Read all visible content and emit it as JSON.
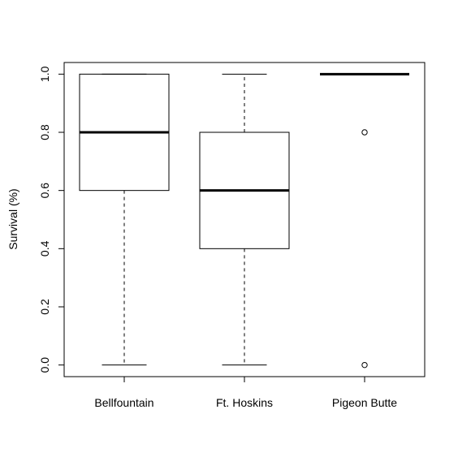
{
  "chart_data": {
    "type": "boxplot",
    "title": "",
    "xlabel": "",
    "ylabel": "Survival (%)",
    "ylim": [
      -0.04,
      1.04
    ],
    "yticks": [
      "0.0",
      "0.2",
      "0.4",
      "0.6",
      "0.8",
      "1.0"
    ],
    "categories": [
      "Bellfountain",
      "Ft. Hoskins",
      "Pigeon Butte"
    ],
    "boxes": [
      {
        "name": "Bellfountain",
        "whisker_low": 0.0,
        "q1": 0.6,
        "median": 0.8,
        "q3": 1.0,
        "whisker_high": 1.0,
        "outliers": []
      },
      {
        "name": "Ft. Hoskins",
        "whisker_low": 0.0,
        "q1": 0.4,
        "median": 0.6,
        "q3": 0.8,
        "whisker_high": 1.0,
        "outliers": []
      },
      {
        "name": "Pigeon Butte",
        "whisker_low": 1.0,
        "q1": 1.0,
        "median": 1.0,
        "q3": 1.0,
        "whisker_high": 1.0,
        "outliers": [
          0.8,
          0.0
        ]
      }
    ],
    "grid": false,
    "legend": "none"
  }
}
